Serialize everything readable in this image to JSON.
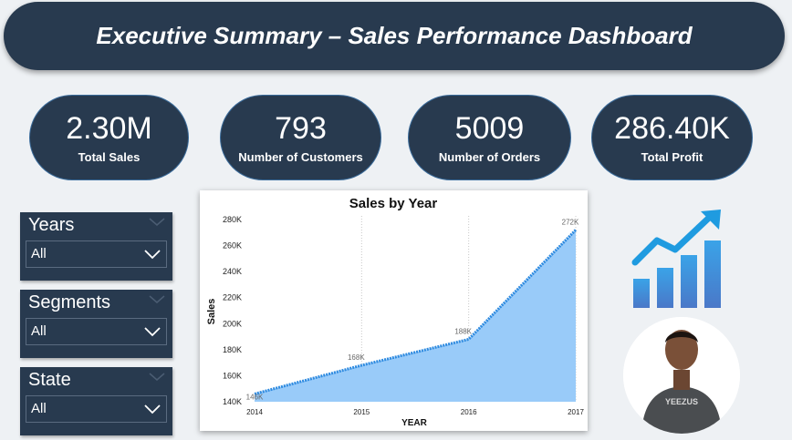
{
  "header": {
    "title": "Executive Summary – Sales Performance Dashboard"
  },
  "kpis": [
    {
      "value": "2.30M",
      "label": "Total Sales"
    },
    {
      "value": "793",
      "label": "Number of Customers"
    },
    {
      "value": "5009",
      "label": "Number of Orders"
    },
    {
      "value": "286.40K",
      "label": "Total Profit"
    }
  ],
  "slicers": [
    {
      "title": "Years",
      "selected": "All"
    },
    {
      "title": "Segments",
      "selected": "All"
    },
    {
      "title": "State",
      "selected": "All"
    }
  ],
  "colors": {
    "panel": "#283a4f",
    "area_fill": "#99cbf9",
    "line": "#2f8be0",
    "icon_bar": "#4a90d9",
    "icon_arrow": "#1f9be0"
  },
  "icons": {
    "growth": "bar-chart-growth-arrow-icon",
    "avatar": "person-avatar"
  },
  "chart_data": {
    "type": "area",
    "title": "Sales by Year",
    "xlabel": "YEAR",
    "ylabel": "Sales",
    "x": [
      2014,
      2015,
      2016,
      2017
    ],
    "values": [
      146,
      168,
      188,
      272
    ],
    "data_labels": [
      "146K",
      "168K",
      "188K",
      "272K"
    ],
    "y_ticks": [
      "140K",
      "160K",
      "180K",
      "200K",
      "220K",
      "240K",
      "260K",
      "280K"
    ],
    "y_tick_values": [
      140,
      160,
      180,
      200,
      220,
      240,
      260,
      280
    ],
    "x_tick_labels": [
      "2014",
      "2015",
      "2016",
      "2017"
    ],
    "ylim": [
      140,
      280
    ],
    "grid": "vertical-dotted",
    "legend": "none"
  }
}
